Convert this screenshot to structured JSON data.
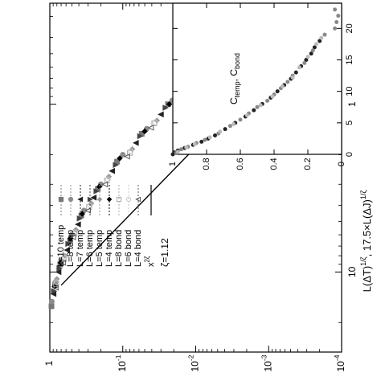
{
  "chart_data": [
    {
      "type": "scatter",
      "title": "",
      "orientation": "rotated 90 degrees clockwise",
      "xlabel": "L(ΔT)^{1/ζ}, 17.5×L(ΔJ)^{1/ζ}",
      "xscale": "log",
      "xlim": [
        0.25,
        30
      ],
      "xticks": [
        1,
        10
      ],
      "xticklabels": [
        "1",
        "10"
      ],
      "ylabel": "",
      "yscale": "log",
      "ylim": [
        0.0001,
        1
      ],
      "yticks": [
        0.0001,
        0.001,
        0.01,
        0.1,
        1
      ],
      "yticklabels": [
        "10-4",
        "10-3",
        "10-2",
        "10-1",
        "1"
      ],
      "legend_position": "top-left",
      "annotation": "ζ=1.12",
      "power_law": {
        "name": "x^{2ζ}",
        "exponent": 2.24,
        "points": [
          [
            0.3,
            0.00018
          ],
          [
            12,
            0.7
          ]
        ]
      },
      "series": [
        {
          "name": "L=10 temp",
          "marker": "square",
          "color": "#777777",
          "points": [
            [
              0.33,
              0.0019
            ],
            [
              0.5,
              0.0052
            ],
            [
              0.7,
              0.011
            ],
            [
              1,
              0.024
            ],
            [
              1.5,
              0.055
            ],
            [
              2.2,
              0.12
            ],
            [
              3.2,
              0.22
            ],
            [
              4.6,
              0.37
            ],
            [
              6.5,
              0.53
            ],
            [
              9,
              0.72
            ],
            [
              12,
              0.85
            ],
            [
              16,
              0.95
            ]
          ]
        },
        {
          "name": "L=8 temp",
          "marker": "circle",
          "color": "#8c8c8c",
          "points": [
            [
              0.3,
              0.0015
            ],
            [
              0.45,
              0.0042
            ],
            [
              0.65,
              0.009
            ],
            [
              0.95,
              0.021
            ],
            [
              1.4,
              0.047
            ],
            [
              2,
              0.1
            ],
            [
              3,
              0.2
            ],
            [
              4.3,
              0.34
            ],
            [
              6,
              0.5
            ],
            [
              8.5,
              0.7
            ],
            [
              11.5,
              0.84
            ],
            [
              15,
              0.94
            ]
          ]
        },
        {
          "name": "L=7 temp",
          "marker": "triangle",
          "color": "#222222",
          "points": [
            [
              0.36,
              0.0023
            ],
            [
              0.55,
              0.0062
            ],
            [
              0.8,
              0.014
            ],
            [
              1.15,
              0.03
            ],
            [
              1.7,
              0.066
            ],
            [
              2.5,
              0.14
            ],
            [
              3.6,
              0.25
            ],
            [
              5.2,
              0.41
            ],
            [
              7.4,
              0.58
            ],
            [
              10,
              0.76
            ],
            [
              13.5,
              0.89
            ]
          ]
        },
        {
          "name": "L=6 temp",
          "marker": "triangle-down",
          "color": "#444444",
          "points": [
            [
              0.32,
              0.0017
            ],
            [
              0.48,
              0.0048
            ],
            [
              0.72,
              0.011
            ],
            [
              1.05,
              0.026
            ],
            [
              1.55,
              0.058
            ],
            [
              2.3,
              0.125
            ],
            [
              3.3,
              0.23
            ],
            [
              4.8,
              0.39
            ],
            [
              6.8,
              0.56
            ],
            [
              9.5,
              0.74
            ],
            [
              13,
              0.88
            ]
          ]
        },
        {
          "name": "L=5 temp",
          "marker": "diamond",
          "color": "#9a9a9a",
          "points": [
            [
              0.38,
              0.0026
            ],
            [
              0.58,
              0.0069
            ],
            [
              0.85,
              0.015
            ],
            [
              1.25,
              0.034
            ],
            [
              1.85,
              0.074
            ],
            [
              2.7,
              0.155
            ],
            [
              3.9,
              0.27
            ],
            [
              5.6,
              0.44
            ],
            [
              8,
              0.62
            ],
            [
              11,
              0.8
            ]
          ]
        },
        {
          "name": "L=4 temp",
          "marker": "diamond",
          "color": "#000000",
          "points": [
            [
              0.31,
              0.0016
            ],
            [
              0.47,
              0.0045
            ],
            [
              0.68,
              0.01
            ],
            [
              1,
              0.023
            ],
            [
              1.45,
              0.05
            ],
            [
              2.1,
              0.11
            ],
            [
              3.1,
              0.21
            ],
            [
              4.5,
              0.36
            ],
            [
              6.3,
              0.52
            ],
            [
              8.8,
              0.71
            ],
            [
              12.2,
              0.86
            ]
          ]
        },
        {
          "name": "L=8 bond",
          "marker": "square-open",
          "color": "#aaaaaa",
          "points": [
            [
              0.42,
              0.0032
            ],
            [
              0.62,
              0.0078
            ],
            [
              0.9,
              0.017
            ],
            [
              1.3,
              0.037
            ],
            [
              1.95,
              0.08
            ],
            [
              2.85,
              0.165
            ],
            [
              4.1,
              0.29
            ],
            [
              5.9,
              0.46
            ],
            [
              8.4,
              0.64
            ],
            [
              11.8,
              0.82
            ]
          ]
        },
        {
          "name": "L=6 bond",
          "marker": "circle-open",
          "color": "#c8c8c8",
          "points": [
            [
              0.4,
              0.0029
            ],
            [
              0.6,
              0.0074
            ],
            [
              0.88,
              0.016
            ],
            [
              1.28,
              0.036
            ],
            [
              1.9,
              0.078
            ],
            [
              2.8,
              0.16
            ],
            [
              4,
              0.28
            ],
            [
              5.8,
              0.45
            ],
            [
              8.2,
              0.63
            ],
            [
              11.5,
              0.81
            ]
          ]
        },
        {
          "name": "L=4 bond",
          "marker": "triangle-open",
          "color": "#5a5a5a",
          "points": [
            [
              0.44,
              0.0035
            ],
            [
              0.66,
              0.0085
            ],
            [
              0.95,
              0.019
            ],
            [
              1.38,
              0.041
            ],
            [
              2.05,
              0.087
            ],
            [
              3,
              0.175
            ],
            [
              4.3,
              0.3
            ],
            [
              6.2,
              0.48
            ],
            [
              8.8,
              0.66
            ],
            [
              12.4,
              0.83
            ]
          ]
        }
      ]
    },
    {
      "type": "scatter",
      "title": "",
      "inset": true,
      "xlabel": "",
      "xlim": [
        0,
        24
      ],
      "xticks": [
        0,
        5,
        10,
        15,
        20
      ],
      "xticklabels": [
        "0",
        "5",
        "10",
        "15",
        "20"
      ],
      "ylabel": "C_temp, C_bond",
      "ylim": [
        0,
        1
      ],
      "yticks": [
        0,
        0.2,
        0.4,
        0.6,
        0.8,
        1
      ],
      "yticklabels": [
        "0",
        "0.2",
        "0.4",
        "0.6",
        "0.8",
        "1"
      ],
      "series": [
        {
          "name": "",
          "color": "#222222",
          "points": [
            [
              0,
              1
            ],
            [
              0.3,
              0.99
            ],
            [
              0.6,
              0.97
            ],
            [
              1,
              0.93
            ],
            [
              1.5,
              0.88
            ],
            [
              2,
              0.83
            ],
            [
              2.5,
              0.79
            ],
            [
              3,
              0.75
            ],
            [
              4,
              0.69
            ],
            [
              5,
              0.63
            ],
            [
              6,
              0.57
            ],
            [
              7,
              0.52
            ],
            [
              8,
              0.47
            ],
            [
              9,
              0.42
            ],
            [
              10,
              0.38
            ],
            [
              11,
              0.34
            ],
            [
              12,
              0.3
            ],
            [
              13,
              0.27
            ],
            [
              14,
              0.24
            ],
            [
              15,
              0.21
            ],
            [
              16,
              0.18
            ],
            [
              17,
              0.16
            ],
            [
              18,
              0.13
            ]
          ]
        },
        {
          "name": "",
          "color": "#888888",
          "points": [
            [
              0.2,
              0.98
            ],
            [
              0.8,
              0.95
            ],
            [
              1.2,
              0.91
            ],
            [
              1.8,
              0.86
            ],
            [
              2.3,
              0.81
            ],
            [
              3.3,
              0.73
            ],
            [
              4.5,
              0.66
            ],
            [
              5.5,
              0.6
            ],
            [
              6.5,
              0.55
            ],
            [
              7.5,
              0.5
            ],
            [
              8.5,
              0.44
            ],
            [
              9.5,
              0.4
            ],
            [
              10.5,
              0.36
            ],
            [
              11.5,
              0.32
            ],
            [
              12.5,
              0.29
            ],
            [
              14.5,
              0.22
            ],
            [
              16.5,
              0.17
            ],
            [
              19,
              0.1
            ],
            [
              20,
              0.04
            ],
            [
              21,
              0.03
            ],
            [
              22,
              0.02
            ],
            [
              23,
              0.04
            ]
          ]
        },
        {
          "name": "",
          "color": "#bbbbbb",
          "points": [
            [
              0.4,
              0.97
            ],
            [
              1.1,
              0.92
            ],
            [
              1.6,
              0.87
            ],
            [
              2.7,
              0.78
            ],
            [
              3.6,
              0.72
            ],
            [
              4.8,
              0.64
            ],
            [
              6.2,
              0.56
            ],
            [
              7.8,
              0.48
            ],
            [
              9.2,
              0.41
            ],
            [
              10.8,
              0.35
            ],
            [
              12.2,
              0.29
            ],
            [
              13.8,
              0.25
            ],
            [
              15.5,
              0.2
            ],
            [
              17.5,
              0.15
            ],
            [
              18.5,
              0.12
            ]
          ]
        }
      ]
    }
  ]
}
